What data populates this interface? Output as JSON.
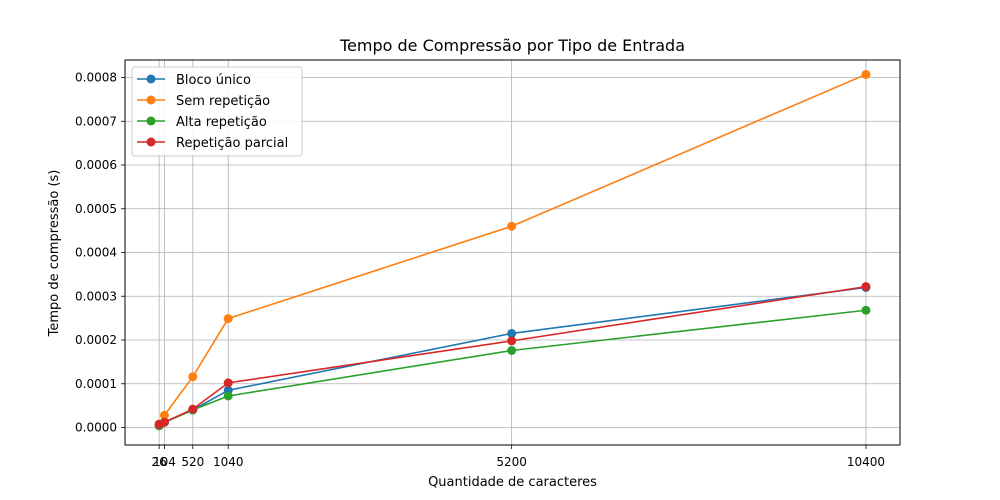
{
  "chart_data": {
    "type": "line",
    "title": "Tempo de Compressão por Tipo de Entrada",
    "xlabel": "Quantidade de caracteres",
    "ylabel": "Tempo de compressão (s)",
    "x": [
      26,
      104,
      520,
      1040,
      5200,
      10400
    ],
    "x_tick_labels": [
      "26",
      "104",
      "520",
      "1040",
      "5200",
      "10400"
    ],
    "xlim": [
      -475,
      10900
    ],
    "ylim": [
      -4e-05,
      0.00084
    ],
    "y_ticks": [
      0,
      0.0001,
      0.0002,
      0.0003,
      0.0004,
      0.0005,
      0.0006,
      0.0007,
      0.0008
    ],
    "y_tick_labels": [
      "0.0000",
      "0.0001",
      "0.0002",
      "0.0003",
      "0.0004",
      "0.0005",
      "0.0006",
      "0.0007",
      "0.0008"
    ],
    "grid": true,
    "legend_position": "top-left",
    "series": [
      {
        "name": "Bloco único",
        "color": "#1f77b4",
        "values": [
          4e-06,
          1.2e-05,
          4e-05,
          8.5e-05,
          0.000215,
          0.00032
        ]
      },
      {
        "name": "Sem repetição",
        "color": "#ff7f0e",
        "values": [
          8e-06,
          2.8e-05,
          0.000116,
          0.000249,
          0.00046,
          0.000807
        ]
      },
      {
        "name": "Alta repetição",
        "color": "#2ca02c",
        "values": [
          4e-06,
          1.2e-05,
          4e-05,
          7.2e-05,
          0.000176,
          0.000268
        ]
      },
      {
        "name": "Repetição parcial",
        "color": "#d62728",
        "values": [
          7e-06,
          1.2e-05,
          4.2e-05,
          0.000102,
          0.000198,
          0.000322
        ]
      }
    ]
  }
}
